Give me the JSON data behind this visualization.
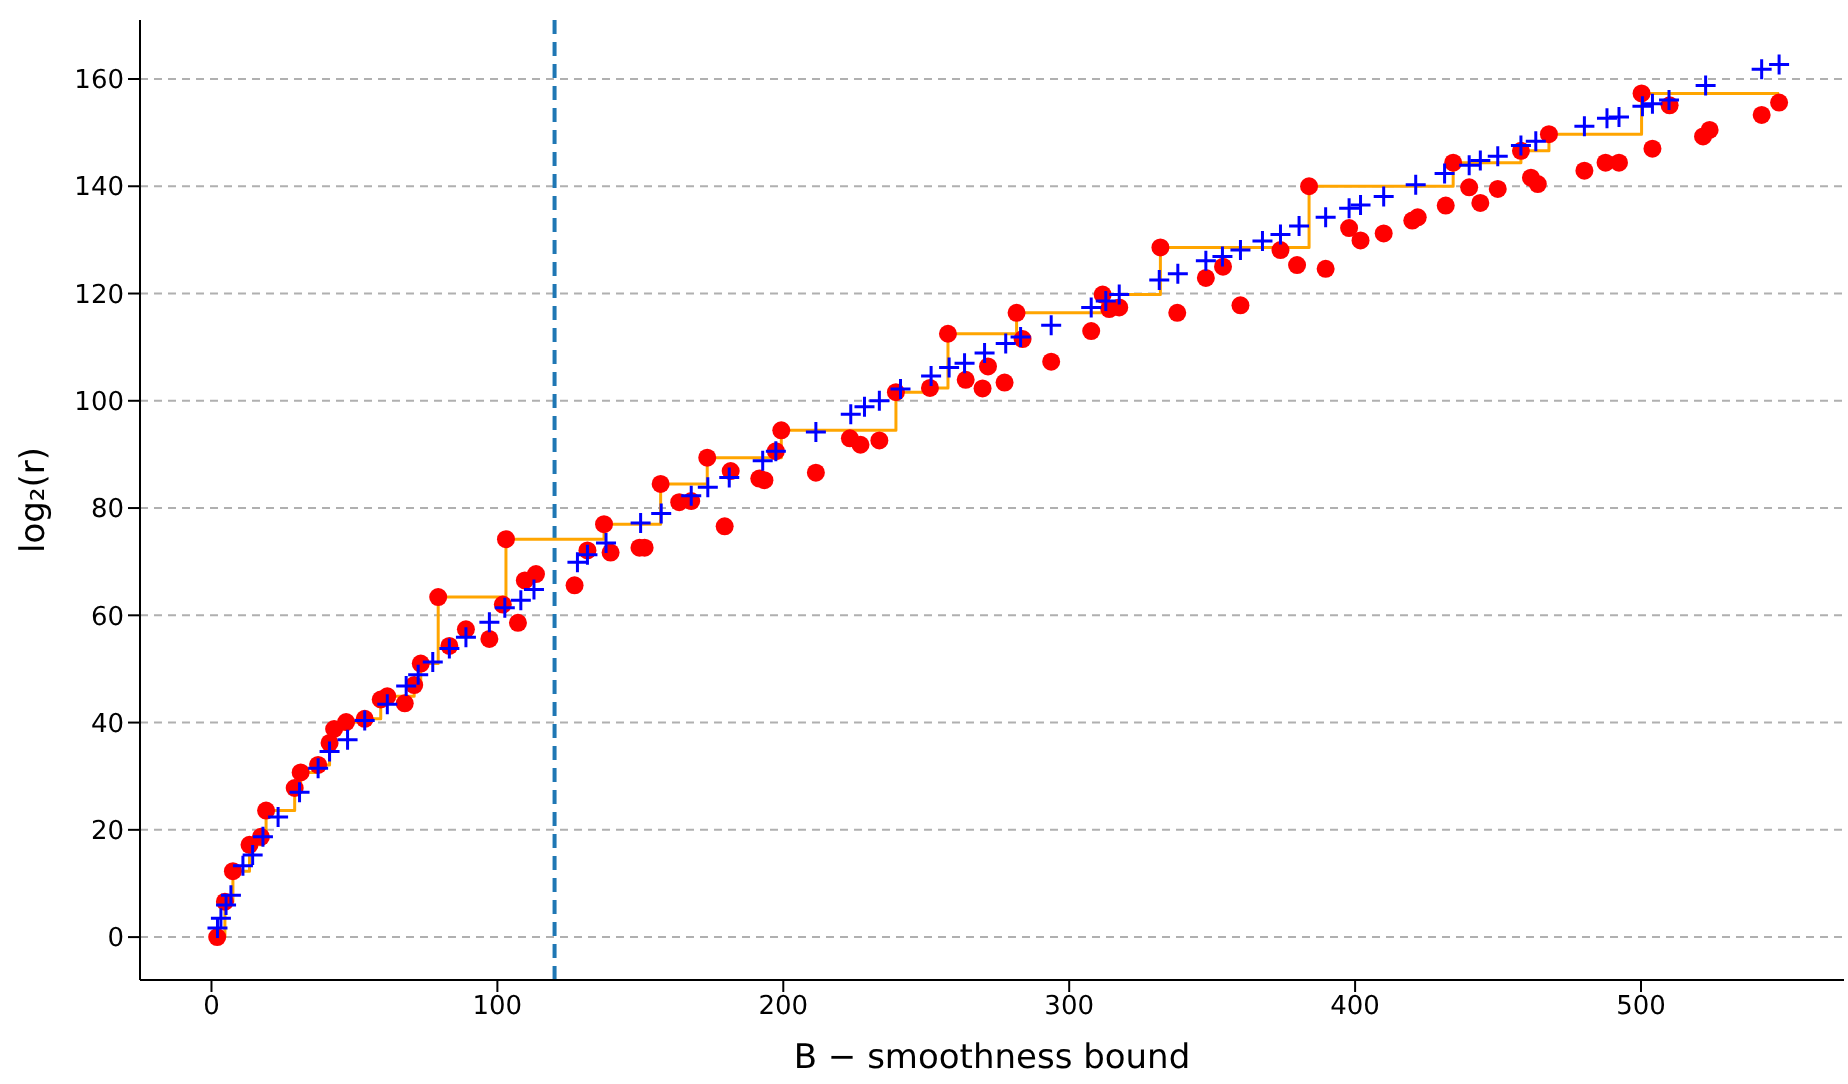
{
  "chart_data": {
    "type": "scatter",
    "xlabel": "B − smoothness bound",
    "ylabel": "log₂(r)",
    "xlim": [
      -25,
      571
    ],
    "ylim": [
      -8,
      171
    ],
    "xticks": [
      0,
      100,
      200,
      300,
      400,
      500
    ],
    "yticks": [
      0,
      20,
      40,
      60,
      80,
      100,
      120,
      140,
      160
    ],
    "grid": "y",
    "ref_lines": [
      {
        "axis": "x",
        "value": 120,
        "color": "#1f77b4",
        "line_style": "dashed"
      }
    ],
    "series": [
      {
        "type": "step",
        "color": "#ffa500",
        "marker": "none",
        "x": [
          2,
          4.7,
          7.5,
          13.3,
          17.3,
          19.1,
          29.1,
          31.2,
          37.3,
          41.3,
          42.9,
          47.1,
          53.6,
          59.2,
          61.5,
          70.9,
          73.2,
          79.3,
          103,
          137.3,
          157.1,
          173.4,
          199.3,
          239.4,
          251.3,
          257.6,
          281.6,
          311.7,
          331.9,
          383.9,
          434.3,
          458,
          467.8,
          500.2,
          548.3
        ],
        "values": [
          0,
          6.6,
          12.3,
          17.2,
          18.7,
          23.6,
          27.8,
          30.7,
          32.1,
          36.2,
          38.8,
          40.1,
          40.7,
          44.3,
          44.9,
          47,
          51,
          63.4,
          74.2,
          77,
          84.5,
          89.4,
          94.5,
          101.6,
          102.4,
          112.5,
          116.4,
          119.8,
          128.6,
          140,
          144.4,
          146.6,
          149.7,
          157.3,
          157.3
        ]
      },
      {
        "color": "#ff0000",
        "marker": "circle",
        "x": [
          2,
          4.7,
          7.5,
          13.3,
          17.3,
          19.1,
          29.1,
          31.2,
          37.3,
          41.3,
          42.9,
          47.1,
          53.6,
          59.2,
          61.5,
          67.6,
          70.9,
          73.2,
          79.3,
          83.2,
          89,
          97.2,
          101.9,
          103,
          107.2,
          109.6,
          113.5,
          127,
          131.5,
          137.3,
          139.6,
          149.7,
          151.5,
          157.1,
          163.6,
          167.8,
          173.4,
          179.5,
          181.6,
          191.6,
          193.4,
          197.4,
          199.3,
          211.4,
          223.3,
          227,
          233.6,
          239.4,
          251.3,
          257.6,
          263.8,
          269.7,
          271.6,
          277.4,
          281.6,
          283.7,
          293.7,
          307.7,
          311.7,
          314,
          317.5,
          331.9,
          337.8,
          347.8,
          353.8,
          359.9,
          373.9,
          379.7,
          383.9,
          389.7,
          397.9,
          401.9,
          410,
          420,
          421.9,
          431.7,
          434.3,
          439.9,
          443.8,
          449.9,
          458,
          461.5,
          463.9,
          467.8,
          480.2,
          487.6,
          492.3,
          500.2,
          504,
          510,
          521.7,
          524,
          542.2,
          548.3
        ],
        "values": [
          0,
          6.6,
          12.3,
          17.2,
          18.7,
          23.6,
          27.8,
          30.7,
          32.1,
          36.2,
          38.8,
          40.1,
          40.7,
          44.3,
          44.9,
          43.6,
          47,
          51,
          63.4,
          54.3,
          57.4,
          55.6,
          62,
          74.2,
          58.6,
          66.5,
          67.7,
          65.6,
          72.1,
          77,
          71.7,
          72.6,
          72.6,
          84.5,
          81.1,
          81.3,
          89.4,
          76.6,
          86.9,
          85.5,
          85.2,
          90.6,
          94.5,
          86.6,
          93,
          91.8,
          92.6,
          101.6,
          102.4,
          112.5,
          103.9,
          102.3,
          106.4,
          103.4,
          116.4,
          111.5,
          107.3,
          113,
          119.8,
          117.1,
          117.4,
          128.6,
          116.4,
          122.9,
          125,
          117.8,
          128.1,
          125.3,
          140,
          124.6,
          132.2,
          129.9,
          131.2,
          133.6,
          134.2,
          136.4,
          144.4,
          139.8,
          136.9,
          139.5,
          146.6,
          141.6,
          140.4,
          149.7,
          142.9,
          144.4,
          144.4,
          157.3,
          147,
          155.1,
          149.3,
          150.5,
          153.3,
          155.6
        ]
      },
      {
        "color": "#0000ff",
        "marker": "cross",
        "x": [
          2.1,
          3.3,
          5.1,
          6.8,
          11,
          14.4,
          18,
          23.3,
          30.8,
          37.3,
          41.3,
          47.6,
          53.6,
          61.5,
          68.1,
          72.3,
          77.4,
          83.2,
          89,
          97.2,
          102.6,
          108.2,
          112.8,
          128,
          131.5,
          138,
          150.1,
          157.3,
          167.8,
          173.6,
          181.1,
          192.8,
          197.4,
          211.4,
          223.6,
          228.4,
          233.6,
          241,
          251.7,
          258,
          263.4,
          270.4,
          277.8,
          283,
          293.7,
          307.7,
          312.8,
          317.5,
          331.5,
          338,
          347.8,
          353.6,
          359.9,
          367.6,
          373.9,
          380.4,
          389.7,
          397.9,
          401.9,
          410,
          421.2,
          431.3,
          439.9,
          443.8,
          449.9,
          458,
          463.2,
          480.2,
          488.1,
          492.3,
          500.5,
          504,
          509.8,
          522.6,
          542.2,
          548.3
        ],
        "values": [
          1.7,
          3.5,
          6,
          7.8,
          13.3,
          15.3,
          18.7,
          22.4,
          27,
          31.5,
          34.6,
          36.8,
          40.4,
          43.4,
          46.8,
          48.9,
          51.3,
          53.8,
          55.9,
          58.7,
          61.4,
          62.8,
          64.8,
          69.9,
          71.3,
          73.5,
          77.2,
          79,
          82.3,
          83.9,
          85.7,
          88.8,
          90.6,
          94.2,
          97.5,
          98.9,
          100,
          102.2,
          104.6,
          106.2,
          107,
          108.9,
          110.7,
          111.9,
          114.1,
          117.4,
          118.6,
          119.8,
          122.5,
          123.7,
          126.1,
          126.9,
          128.1,
          129.8,
          131,
          132.6,
          134.2,
          135.9,
          136.5,
          138.1,
          140.3,
          142.4,
          143.9,
          144.8,
          145.6,
          147.6,
          148.4,
          151.2,
          152.7,
          152.9,
          154.9,
          155.4,
          156.1,
          158.8,
          161.8,
          162.7
        ]
      }
    ]
  }
}
